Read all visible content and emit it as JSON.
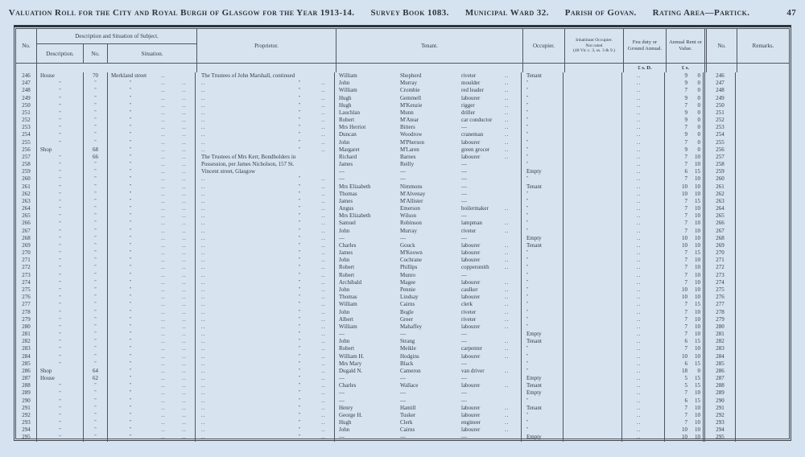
{
  "page": {
    "title_parts": [
      "Valuation Roll for the City and Royal Burgh of Glasgow for the Year 1913-14.",
      "Survey Book 1083.",
      "Municipal Ward 32.",
      "Parish of Govan.",
      "Rating Area—Partick."
    ],
    "page_number": "47"
  },
  "table": {
    "headers": {
      "no_left": "No.",
      "group_desc_sit": "Description and Situation of Subject.",
      "description": "Description.",
      "street_no": "No.",
      "situation": "Situation.",
      "proprietor": "Proprietor.",
      "tenant": "Tenant.",
      "occupier": "Occupier.",
      "inhabitant_line1": "Inhabitant Occupier.",
      "inhabitant_line2": "Not rated",
      "inhabitant_line3": "(48 Vic c. 3, ss. 3 & 9.)",
      "feu_duty": "Feu duty or Ground Annual.",
      "annual_rent": "Annual Rent or Value.",
      "no_right": "No.",
      "remarks": "Remarks."
    },
    "units": {
      "feu": "£ s. D.",
      "rent": "£  s."
    },
    "marks": {
      "ditto": "\"",
      "dots": "..",
      "dash": "—"
    },
    "row_fields": [
      "no",
      "description",
      "street_no",
      "situation",
      "proprietor",
      "tenant_forename",
      "tenant_surname",
      "tenant_occupation",
      "has_dots",
      "occupier",
      "rent_pounds",
      "rent_shillings"
    ],
    "rows": [
      [
        "246",
        "House",
        "70",
        "Merkland street",
        "The Trustees of John Marshall, continued",
        "William",
        "Shepherd",
        "riveter",
        1,
        "Tenant",
        "9",
        "0"
      ],
      [
        "247",
        "\"",
        "\"",
        "\"",
        "\"",
        "John",
        "Murray",
        "moulder",
        1,
        "\"",
        "9",
        "0"
      ],
      [
        "248",
        "\"",
        "\"",
        "\"",
        "\"",
        "William",
        "Crombie",
        "red leader",
        1,
        "\"",
        "7",
        "0"
      ],
      [
        "249",
        "\"",
        "\"",
        "\"",
        "\"",
        "Hugh",
        "Gemmell",
        "labourer",
        1,
        "\"",
        "9",
        "0"
      ],
      [
        "250",
        "\"",
        "\"",
        "\"",
        "\"",
        "Hugh",
        "M'Kenzie",
        "rigger",
        1,
        "\"",
        "7",
        "0"
      ],
      [
        "251",
        "\"",
        "\"",
        "\"",
        "\"",
        "Lauchlan",
        "Munn",
        "driller",
        1,
        "\"",
        "9",
        "0"
      ],
      [
        "252",
        "\"",
        "\"",
        "\"",
        "\"",
        "Robert",
        "M'Atear",
        "car conductor",
        1,
        "\"",
        "9",
        "0"
      ],
      [
        "253",
        "\"",
        "\"",
        "\"",
        "\"",
        "Mrs Herriot",
        "Bitters",
        "—",
        1,
        "\"",
        "7",
        "0"
      ],
      [
        "254",
        "\"",
        "\"",
        "\"",
        "\"",
        "Duncan",
        "Woodrow",
        "craneman",
        1,
        "\"",
        "9",
        "0"
      ],
      [
        "255",
        "\"",
        "\"",
        "\"",
        "\"",
        "John",
        "M'Pherson",
        "labourer",
        1,
        "\"",
        "7",
        "0"
      ],
      [
        "256",
        "Shop",
        "68",
        "\"",
        "\"",
        "Margaret",
        "M'Laren",
        "green grocer",
        1,
        "\"",
        "9",
        "0"
      ],
      [
        "257",
        "\"",
        "66",
        "\"",
        "The Trustees of Mrs Kerr, Bondholders in",
        "Richard",
        "Barnes",
        "labourer",
        1,
        "\"",
        "7",
        "10"
      ],
      [
        "258",
        "\"",
        "\"",
        "\"",
        "Possession, per James Nicholson, 157 St.",
        "James",
        "Reilly",
        "—",
        0,
        "\"",
        "7",
        "10"
      ],
      [
        "259",
        "\"",
        "\"",
        "\"",
        "Vincent street, Glasgow",
        "—",
        "—",
        "—",
        0,
        "Empty",
        "6",
        "15"
      ],
      [
        "260",
        "\"",
        "\"",
        "\"",
        "\"",
        "—",
        "—",
        "—",
        0,
        "\"",
        "7",
        "10"
      ],
      [
        "261",
        "\"",
        "\"",
        "\"",
        "\"",
        "Mrs Elizabeth",
        "Nimmons",
        "—",
        0,
        "Tenant",
        "10",
        "10"
      ],
      [
        "262",
        "\"",
        "\"",
        "\"",
        "\"",
        "Thomas",
        "M'Alvenay",
        "—",
        0,
        "\"",
        "10",
        "10"
      ],
      [
        "263",
        "\"",
        "\"",
        "\"",
        "\"",
        "James",
        "M'Allister",
        "—",
        0,
        "\"",
        "7",
        "15"
      ],
      [
        "264",
        "\"",
        "\"",
        "\"",
        "\"",
        "Angus",
        "Emerson",
        "boilermaker",
        1,
        "\"",
        "7",
        "10"
      ],
      [
        "265",
        "\"",
        "\"",
        "\"",
        "\"",
        "Mrs Elizabeth",
        "Wilson",
        "—",
        0,
        "\"",
        "7",
        "10"
      ],
      [
        "266",
        "\"",
        "\"",
        "\"",
        "\"",
        "Samuel",
        "Robinson",
        "lampman",
        1,
        "\"",
        "7",
        "10"
      ],
      [
        "267",
        "\"",
        "\"",
        "\"",
        "\"",
        "John",
        "Murray",
        "riveter",
        1,
        "\"",
        "7",
        "10"
      ],
      [
        "268",
        "\"",
        "\"",
        "\"",
        "\"",
        "—",
        "—",
        "—",
        0,
        "Empty",
        "10",
        "10"
      ],
      [
        "269",
        "\"",
        "\"",
        "\"",
        "\"",
        "Charles",
        "Gouck",
        "labourer",
        1,
        "Tenant",
        "10",
        "10"
      ],
      [
        "270",
        "\"",
        "\"",
        "\"",
        "\"",
        "James",
        "M'Keown",
        "labourer",
        1,
        "\"",
        "7",
        "15"
      ],
      [
        "271",
        "\"",
        "\"",
        "\"",
        "\"",
        "John",
        "Cochrane",
        "labourer",
        1,
        "\"",
        "7",
        "10"
      ],
      [
        "272",
        "\"",
        "\"",
        "\"",
        "\"",
        "Robert",
        "Phillips",
        "coppersmith",
        1,
        "\"",
        "7",
        "10"
      ],
      [
        "273",
        "\"",
        "\"",
        "\"",
        "\"",
        "Robert",
        "Munro",
        "—",
        0,
        "\"",
        "7",
        "10"
      ],
      [
        "274",
        "\"",
        "\"",
        "\"",
        "\"",
        "Archibald",
        "Magee",
        "labourer",
        1,
        "\"",
        "7",
        "10"
      ],
      [
        "275",
        "\"",
        "\"",
        "\"",
        "\"",
        "John",
        "Pennie",
        "caulker",
        1,
        "\"",
        "10",
        "10"
      ],
      [
        "276",
        "\"",
        "\"",
        "\"",
        "\"",
        "Thomas",
        "Lindsay",
        "labourer",
        1,
        "\"",
        "10",
        "10"
      ],
      [
        "277",
        "\"",
        "\"",
        "\"",
        "\"",
        "William",
        "Cairns",
        "clerk",
        1,
        "\"",
        "7",
        "15"
      ],
      [
        "278",
        "\"",
        "\"",
        "\"",
        "\"",
        "John",
        "Bogle",
        "riveter",
        1,
        "\"",
        "7",
        "10"
      ],
      [
        "279",
        "\"",
        "\"",
        "\"",
        "\"",
        "Albert",
        "Greer",
        "riveter",
        1,
        "\"",
        "7",
        "10"
      ],
      [
        "280",
        "\"",
        "\"",
        "\"",
        "\"",
        "William",
        "Mahaffey",
        "labourer",
        1,
        "\"",
        "7",
        "10"
      ],
      [
        "281",
        "\"",
        "\"",
        "\"",
        "\"",
        "—",
        "—",
        "—",
        0,
        "Empty",
        "7",
        "10"
      ],
      [
        "282",
        "\"",
        "\"",
        "\"",
        "\"",
        "John",
        "Strang",
        "—",
        1,
        "Tenant",
        "6",
        "15"
      ],
      [
        "283",
        "\"",
        "\"",
        "\"",
        "\"",
        "Robert",
        "Meikle",
        "carpenter",
        1,
        "\"",
        "7",
        "10"
      ],
      [
        "284",
        "\"",
        "\"",
        "\"",
        "\"",
        "William H.",
        "Hodgins",
        "labourer",
        1,
        "\"",
        "10",
        "10"
      ],
      [
        "285",
        "\"",
        "\"",
        "\"",
        "\"",
        "Mrs Mary",
        "Black",
        "—",
        0,
        "\"",
        "6",
        "15"
      ],
      [
        "286",
        "Shop",
        "64",
        "\"",
        "\"",
        "Dugald N.",
        "Cameron",
        "van driver",
        1,
        "\"",
        "18",
        "0"
      ],
      [
        "287",
        "House",
        "62",
        "\"",
        "\"",
        "—",
        "—",
        "—",
        0,
        "Empty",
        "5",
        "15"
      ],
      [
        "288",
        "\"",
        "\"",
        "\"",
        "\"",
        "Charles",
        "Wallace",
        "labourer",
        1,
        "Tenant",
        "5",
        "15"
      ],
      [
        "289",
        "\"",
        "\"",
        "\"",
        "\"",
        "—",
        "—",
        "—",
        0,
        "Empty",
        "7",
        "10"
      ],
      [
        "290",
        "\"",
        "\"",
        "\"",
        "\"",
        "—",
        "—",
        "—",
        0,
        "\"",
        "6",
        "15"
      ],
      [
        "291",
        "\"",
        "\"",
        "\"",
        "\"",
        "Henry",
        "Hamill",
        "labourer",
        1,
        "Tenant",
        "7",
        "10"
      ],
      [
        "292",
        "\"",
        "\"",
        "\"",
        "\"",
        "George H.",
        "Tusker",
        "labourer",
        1,
        "\"",
        "7",
        "10"
      ],
      [
        "293",
        "\"",
        "\"",
        "\"",
        "\"",
        "Hugh",
        "Clerk",
        "engineer",
        1,
        "\"",
        "7",
        "10"
      ],
      [
        "294",
        "\"",
        "\"",
        "\"",
        "\"",
        "John",
        "Cairns",
        "labourer",
        1,
        "\"",
        "10",
        "10"
      ],
      [
        "295",
        "\"",
        "\"",
        "\"",
        "\"",
        "—",
        "—",
        "—",
        0,
        "Empty",
        "10",
        "10"
      ]
    ]
  }
}
